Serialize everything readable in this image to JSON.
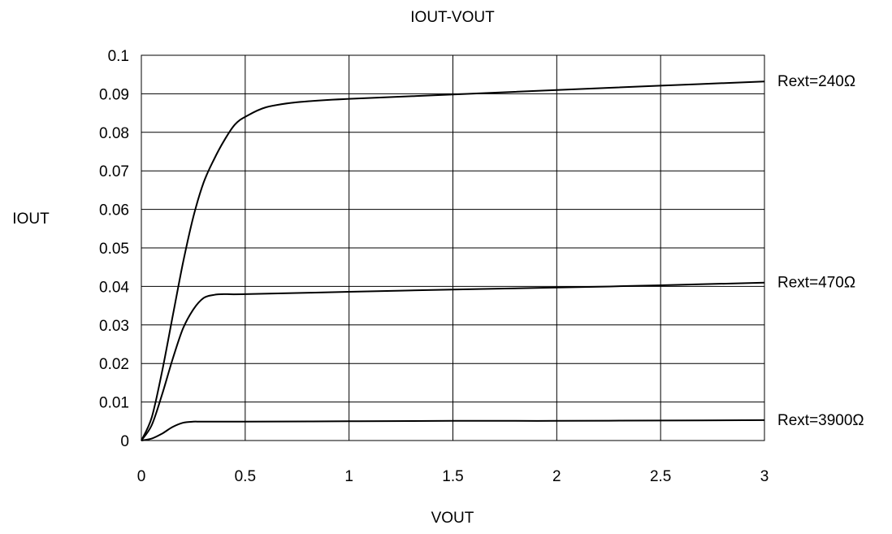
{
  "chart_data": {
    "type": "line",
    "title": "IOUT-VOUT",
    "xlabel": "VOUT",
    "ylabel": "IOUT",
    "xlim": [
      0,
      3
    ],
    "ylim": [
      0,
      0.1
    ],
    "xticks": [
      0,
      0.5,
      1,
      1.5,
      2,
      2.5,
      3
    ],
    "xtick_labels": [
      "0",
      "0.5",
      "1",
      "1.5",
      "2",
      "2.5",
      "3"
    ],
    "yticks": [
      0,
      0.01,
      0.02,
      0.03,
      0.04,
      0.05,
      0.06,
      0.07,
      0.08,
      0.09,
      0.1
    ],
    "ytick_labels": [
      "0",
      "0.01",
      "0.02",
      "0.03",
      "0.04",
      "0.05",
      "0.06",
      "0.07",
      "0.08",
      "0.09",
      "0.1"
    ],
    "grid": true,
    "legend": "curve-end labels at right",
    "series": [
      {
        "name": "Rext=240Ω",
        "x": [
          0,
          0.05,
          0.1,
          0.15,
          0.2,
          0.25,
          0.3,
          0.35,
          0.4,
          0.45,
          0.5,
          0.6,
          0.75,
          1.0,
          1.5,
          2.0,
          2.5,
          3.0
        ],
        "y": [
          0,
          0.006,
          0.018,
          0.032,
          0.046,
          0.058,
          0.067,
          0.073,
          0.078,
          0.082,
          0.084,
          0.0865,
          0.0878,
          0.0887,
          0.0898,
          0.091,
          0.0921,
          0.0932
        ]
      },
      {
        "name": "Rext=470Ω",
        "x": [
          0,
          0.05,
          0.1,
          0.15,
          0.2,
          0.25,
          0.3,
          0.35,
          0.4,
          0.5,
          1.0,
          1.5,
          2.0,
          2.5,
          3.0
        ],
        "y": [
          0,
          0.004,
          0.012,
          0.021,
          0.029,
          0.034,
          0.037,
          0.0378,
          0.038,
          0.038,
          0.0386,
          0.0392,
          0.0397,
          0.0403,
          0.041
        ]
      },
      {
        "name": "Rext=3900Ω",
        "x": [
          0,
          0.05,
          0.1,
          0.15,
          0.2,
          0.25,
          0.3,
          0.5,
          1.0,
          1.5,
          2.0,
          2.5,
          3.0
        ],
        "y": [
          0,
          0.0005,
          0.0018,
          0.0035,
          0.0046,
          0.0049,
          0.0049,
          0.0049,
          0.005,
          0.0051,
          0.0051,
          0.0052,
          0.0053
        ]
      }
    ]
  }
}
